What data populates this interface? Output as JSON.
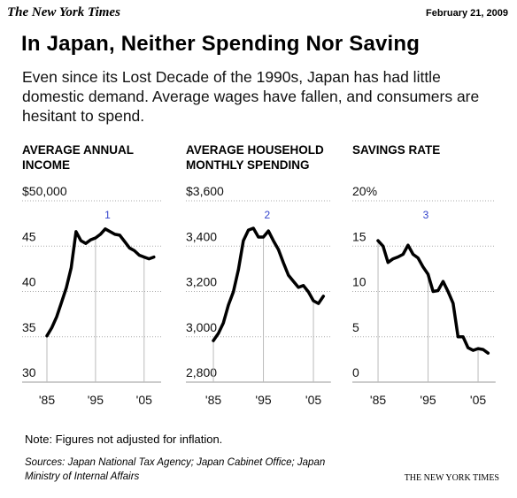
{
  "header": {
    "logo": "The New York Times",
    "date": "February 21, 2009"
  },
  "title": "In Japan, Neither Spending Nor Saving",
  "subtitle": "Even since its Lost Decade of the 1990s, Japan has had little domestic demand. Average wages have fallen, and consumers are hesitant to spend.",
  "chart_data": [
    {
      "type": "line",
      "title": "AVERAGE ANNUAL INCOME",
      "annotation": "1",
      "color": "#000000",
      "grid": true,
      "x": [
        1985,
        1986,
        1987,
        1988,
        1989,
        1990,
        1991,
        1992,
        1993,
        1994,
        1995,
        1996,
        1997,
        1998,
        1999,
        2000,
        2001,
        2002,
        2003,
        2004,
        2005,
        2006,
        2007
      ],
      "values": [
        35.1,
        36.0,
        37.2,
        38.8,
        40.4,
        42.6,
        46.6,
        45.6,
        45.3,
        45.7,
        45.9,
        46.3,
        46.9,
        46.6,
        46.3,
        46.2,
        45.5,
        44.8,
        44.5,
        44.0,
        43.8,
        43.6,
        43.8
      ],
      "xlim": [
        1984,
        2008.5
      ],
      "xticks": [
        {
          "value": 1985,
          "label": "'85"
        },
        {
          "value": 1995,
          "label": "'95"
        },
        {
          "value": 2005,
          "label": "'05"
        }
      ],
      "ylim": [
        30,
        50
      ],
      "yticks": [
        30,
        35,
        40,
        45,
        {
          "value": 50,
          "label": "$50,000"
        }
      ]
    },
    {
      "type": "line",
      "title": "AVERAGE HOUSEHOLD MONTHLY SPENDING",
      "annotation": "2",
      "color": "#000000",
      "grid": true,
      "x": [
        1985,
        1986,
        1987,
        1988,
        1989,
        1990,
        1991,
        1992,
        1993,
        1994,
        1995,
        1996,
        1997,
        1998,
        1999,
        2000,
        2001,
        2002,
        2003,
        2004,
        2005,
        2006,
        2007
      ],
      "values": [
        2983,
        3015,
        3061,
        3140,
        3198,
        3296,
        3424,
        3471,
        3479,
        3440,
        3440,
        3467,
        3424,
        3385,
        3327,
        3272,
        3245,
        3218,
        3226,
        3198,
        3159,
        3147,
        3179
      ],
      "xlim": [
        1984,
        2008.5
      ],
      "xticks": [
        {
          "value": 1985,
          "label": "'85"
        },
        {
          "value": 1995,
          "label": "'95"
        },
        {
          "value": 2005,
          "label": "'05"
        }
      ],
      "ylim": [
        2800,
        3600
      ],
      "yticks": [
        {
          "value": 2800,
          "label": "2,800"
        },
        {
          "value": 3000,
          "label": "3,000"
        },
        {
          "value": 3200,
          "label": "3,200"
        },
        {
          "value": 3400,
          "label": "3,400"
        },
        {
          "value": 3600,
          "label": "$3,600"
        }
      ]
    },
    {
      "type": "line",
      "title": "SAVINGS RATE",
      "annotation": "3",
      "color": "#000000",
      "grid": true,
      "x": [
        1985,
        1986,
        1987,
        1988,
        1989,
        1990,
        1991,
        1992,
        1993,
        1994,
        1995,
        1996,
        1997,
        1998,
        1999,
        2000,
        2001,
        2002,
        2003,
        2004,
        2005,
        2006,
        2007
      ],
      "values": [
        15.6,
        15.0,
        13.2,
        13.6,
        13.8,
        14.1,
        15.1,
        14.1,
        13.7,
        12.7,
        11.9,
        10.0,
        10.1,
        11.1,
        10.0,
        8.7,
        5.0,
        5.0,
        3.8,
        3.5,
        3.7,
        3.6,
        3.2
      ],
      "xlim": [
        1984,
        2008.5
      ],
      "xticks": [
        {
          "value": 1985,
          "label": "'85"
        },
        {
          "value": 1995,
          "label": "'95"
        },
        {
          "value": 2005,
          "label": "'05"
        }
      ],
      "ylim": [
        0,
        20
      ],
      "yticks": [
        0,
        5,
        10,
        15,
        {
          "value": 20,
          "label": "20%"
        }
      ]
    }
  ],
  "note": "Note: Figures not adjusted for inflation.",
  "sources": "Sources: Japan National Tax Agency; Japan Cabinet Office; Japan Ministry of Internal Affairs",
  "credit": "THE NEW YORK TIMES"
}
